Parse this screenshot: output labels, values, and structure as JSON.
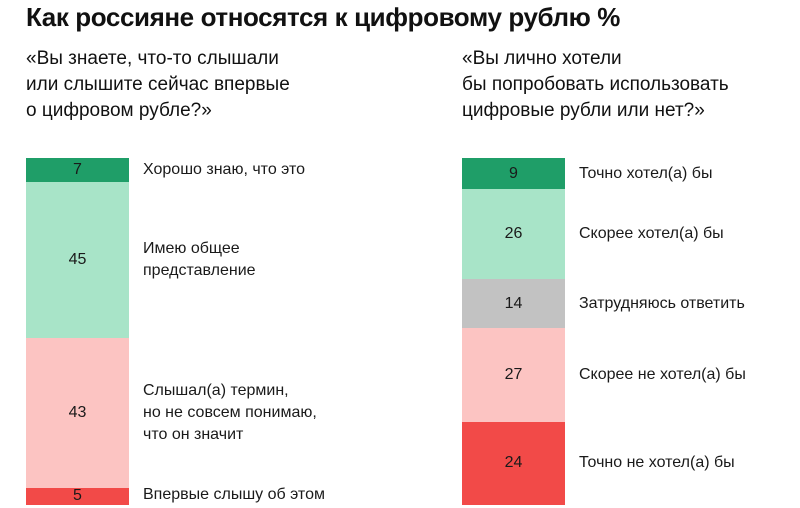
{
  "title": "Как россияне относятся к цифровому рублю %",
  "colors": {
    "dark_green": "#1f9e68",
    "light_green": "#a8e4c8",
    "gray": "#c2c2c2",
    "light_red": "#fcc4c2",
    "red": "#f24a48"
  },
  "chart_data": [
    {
      "type": "bar",
      "stacked": true,
      "orientation": "vertical",
      "question": "«Вы знаете, что-то слышали\nили слышите сейчас впервые\nо цифровом рубле?»",
      "segments": [
        {
          "value": 7,
          "label": "Хорошо знаю, что это",
          "color": "#1f9e68"
        },
        {
          "value": 45,
          "label": "Имею общее\nпредставление",
          "color": "#a8e4c8"
        },
        {
          "value": 43,
          "label": "Слышал(а) термин,\nно не совсем понимаю,\nчто он значит",
          "color": "#fcc4c2"
        },
        {
          "value": 5,
          "label": "Впервые слышу об этом",
          "color": "#f24a48"
        }
      ]
    },
    {
      "type": "bar",
      "stacked": true,
      "orientation": "vertical",
      "question": "«Вы лично хотели\nбы попробовать использовать\nцифровые рубли или нет?»",
      "segments": [
        {
          "value": 9,
          "label": "Точно хотел(а) бы",
          "color": "#1f9e68"
        },
        {
          "value": 26,
          "label": "Скорее хотел(а) бы",
          "color": "#a8e4c8"
        },
        {
          "value": 14,
          "label": "Затрудняюсь ответить",
          "color": "#c2c2c2"
        },
        {
          "value": 27,
          "label": "Скорее не хотел(а) бы",
          "color": "#fcc4c2"
        },
        {
          "value": 24,
          "label": "Точно не хотел(а) бы",
          "color": "#f24a48"
        }
      ]
    }
  ]
}
